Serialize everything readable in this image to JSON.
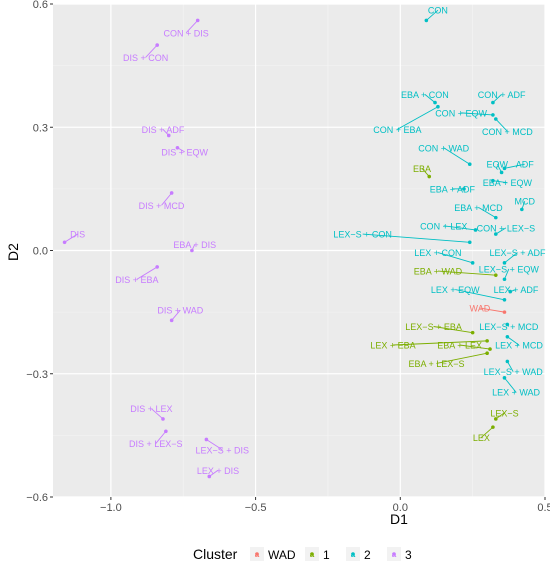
{
  "chart_data": {
    "type": "scatter",
    "xlabel": "D1",
    "ylabel": "D2",
    "xlim": [
      -1.2,
      0.5
    ],
    "ylim": [
      -0.6,
      0.6
    ],
    "x_ticks": [
      -1.0,
      -0.5,
      0.0,
      0.5
    ],
    "x_tick_labels": [
      "−1.0",
      "−0.5",
      "0.0",
      "0.5"
    ],
    "y_ticks": [
      -0.6,
      -0.3,
      0.0,
      0.3,
      0.6
    ],
    "y_tick_labels": [
      "−0.6",
      "−0.3",
      "0.0",
      "0.3",
      "0.6"
    ],
    "grid": true,
    "legend": {
      "title": "Cluster",
      "position": "bottom",
      "entries": [
        {
          "label": "WAD",
          "color": "#F8766D"
        },
        {
          "label": "1",
          "color": "#7CAE00"
        },
        {
          "label": "2",
          "color": "#00BFC4"
        },
        {
          "label": "3",
          "color": "#C77CFF"
        }
      ]
    },
    "cluster_colors": {
      "WAD": "#F8766D",
      "1": "#7CAE00",
      "2": "#00BFC4",
      "3": "#C77CFF"
    },
    "points": [
      {
        "label": "CON",
        "x": 0.09,
        "y": 0.56,
        "cluster": "2",
        "lx": 0.13,
        "ly": 0.585
      },
      {
        "label": "CON + ADF",
        "x": 0.32,
        "y": 0.36,
        "cluster": "2",
        "lx": 0.35,
        "ly": 0.38
      },
      {
        "label": "EBA + CON",
        "x": 0.12,
        "y": 0.36,
        "cluster": "2",
        "lx": 0.085,
        "ly": 0.38
      },
      {
        "label": "CON + EQW",
        "x": 0.32,
        "y": 0.33,
        "cluster": "2",
        "lx": 0.21,
        "ly": 0.335
      },
      {
        "label": "CON + EBA",
        "x": 0.13,
        "y": 0.35,
        "cluster": "2",
        "lx": -0.01,
        "ly": 0.295
      },
      {
        "label": "CON + MCD",
        "x": 0.33,
        "y": 0.32,
        "cluster": "2",
        "lx": 0.37,
        "ly": 0.29
      },
      {
        "label": "CON + WAD",
        "x": 0.24,
        "y": 0.21,
        "cluster": "2",
        "lx": 0.15,
        "ly": 0.25
      },
      {
        "label": "EQW",
        "x": 0.35,
        "y": 0.19,
        "cluster": "2",
        "lx": 0.335,
        "ly": 0.21
      },
      {
        "label": "ADF",
        "x": 0.36,
        "y": 0.2,
        "cluster": "2",
        "lx": 0.43,
        "ly": 0.21
      },
      {
        "label": "EBA + ADF",
        "x": 0.22,
        "y": 0.15,
        "cluster": "2",
        "lx": 0.18,
        "ly": 0.15
      },
      {
        "label": "EBA + EQW",
        "x": 0.32,
        "y": 0.17,
        "cluster": "2",
        "lx": 0.37,
        "ly": 0.165
      },
      {
        "label": "MCD",
        "x": 0.42,
        "y": 0.1,
        "cluster": "2",
        "lx": 0.43,
        "ly": 0.12
      },
      {
        "label": "EBA + MCD",
        "x": 0.33,
        "y": 0.08,
        "cluster": "2",
        "lx": 0.27,
        "ly": 0.105
      },
      {
        "label": "CON + LEX",
        "x": 0.26,
        "y": 0.05,
        "cluster": "2",
        "lx": 0.15,
        "ly": 0.06
      },
      {
        "label": "CON + LEX−S",
        "x": 0.33,
        "y": 0.04,
        "cluster": "2",
        "lx": 0.365,
        "ly": 0.055
      },
      {
        "label": "LEX−S + CON",
        "x": 0.24,
        "y": 0.02,
        "cluster": "2",
        "lx": -0.13,
        "ly": 0.04
      },
      {
        "label": "LEX + CON",
        "x": 0.25,
        "y": -0.03,
        "cluster": "2",
        "lx": 0.13,
        "ly": -0.005
      },
      {
        "label": "LEX−S + ADF",
        "x": 0.36,
        "y": -0.03,
        "cluster": "2",
        "lx": 0.405,
        "ly": -0.005
      },
      {
        "label": "LEX−S + EQW",
        "x": 0.36,
        "y": -0.07,
        "cluster": "2",
        "lx": 0.375,
        "ly": -0.045
      },
      {
        "label": "LEX + EQW",
        "x": 0.36,
        "y": -0.12,
        "cluster": "2",
        "lx": 0.19,
        "ly": -0.095
      },
      {
        "label": "LEX + ADF",
        "x": 0.38,
        "y": -0.1,
        "cluster": "2",
        "lx": 0.4,
        "ly": -0.095
      },
      {
        "label": "LEX−S + MCD",
        "x": 0.37,
        "y": -0.18,
        "cluster": "2",
        "lx": 0.375,
        "ly": -0.185
      },
      {
        "label": "LEX + MCD",
        "x": 0.37,
        "y": -0.21,
        "cluster": "2",
        "lx": 0.41,
        "ly": -0.23
      },
      {
        "label": "LEX−S + WAD",
        "x": 0.37,
        "y": -0.27,
        "cluster": "2",
        "lx": 0.39,
        "ly": -0.295
      },
      {
        "label": "LEX + WAD",
        "x": 0.36,
        "y": -0.31,
        "cluster": "2",
        "lx": 0.4,
        "ly": -0.345
      },
      {
        "label": "EBA",
        "x": 0.1,
        "y": 0.18,
        "cluster": "1",
        "lx": 0.075,
        "ly": 0.2
      },
      {
        "label": "EBA + WAD",
        "x": 0.33,
        "y": -0.06,
        "cluster": "1",
        "lx": 0.13,
        "ly": -0.05
      },
      {
        "label": "LEX−S + EBA",
        "x": 0.25,
        "y": -0.2,
        "cluster": "1",
        "lx": 0.115,
        "ly": -0.185
      },
      {
        "label": "LEX + EBA",
        "x": 0.3,
        "y": -0.22,
        "cluster": "1",
        "lx": -0.025,
        "ly": -0.23
      },
      {
        "label": "EBA + LEX",
        "x": 0.31,
        "y": -0.24,
        "cluster": "1",
        "lx": 0.205,
        "ly": -0.23
      },
      {
        "label": "EBA + LEX−S",
        "x": 0.3,
        "y": -0.25,
        "cluster": "1",
        "lx": 0.125,
        "ly": -0.275
      },
      {
        "label": "LEX−S",
        "x": 0.33,
        "y": -0.41,
        "cluster": "1",
        "lx": 0.36,
        "ly": -0.395
      },
      {
        "label": "LEX",
        "x": 0.32,
        "y": -0.43,
        "cluster": "1",
        "lx": 0.28,
        "ly": -0.455
      },
      {
        "label": "WAD",
        "x": 0.36,
        "y": -0.15,
        "cluster": "WAD",
        "lx": 0.275,
        "ly": -0.14
      },
      {
        "label": "CON + DIS",
        "x": -0.7,
        "y": 0.56,
        "cluster": "3",
        "lx": -0.74,
        "ly": 0.53
      },
      {
        "label": "DIS + CON",
        "x": -0.84,
        "y": 0.5,
        "cluster": "3",
        "lx": -0.88,
        "ly": 0.47
      },
      {
        "label": "DIS + ADF",
        "x": -0.8,
        "y": 0.28,
        "cluster": "3",
        "lx": -0.82,
        "ly": 0.295
      },
      {
        "label": "DIS + EQW",
        "x": -0.77,
        "y": 0.25,
        "cluster": "3",
        "lx": -0.745,
        "ly": 0.24
      },
      {
        "label": "DIS + MCD",
        "x": -0.79,
        "y": 0.14,
        "cluster": "3",
        "lx": -0.825,
        "ly": 0.11
      },
      {
        "label": "DIS",
        "x": -1.16,
        "y": 0.02,
        "cluster": "3",
        "lx": -1.115,
        "ly": 0.04
      },
      {
        "label": "EBA + DIS",
        "x": -0.72,
        "y": 0.0,
        "cluster": "3",
        "lx": -0.71,
        "ly": 0.015
      },
      {
        "label": "DIS + EBA",
        "x": -0.84,
        "y": -0.04,
        "cluster": "3",
        "lx": -0.91,
        "ly": -0.07
      },
      {
        "label": "DIS + WAD",
        "x": -0.79,
        "y": -0.17,
        "cluster": "3",
        "lx": -0.76,
        "ly": -0.145
      },
      {
        "label": "DIS + LEX",
        "x": -0.82,
        "y": -0.41,
        "cluster": "3",
        "lx": -0.86,
        "ly": -0.385
      },
      {
        "label": "DIS + LEX−S",
        "x": -0.81,
        "y": -0.44,
        "cluster": "3",
        "lx": -0.845,
        "ly": -0.47
      },
      {
        "label": "LEX−S + DIS",
        "x": -0.67,
        "y": -0.46,
        "cluster": "3",
        "lx": -0.615,
        "ly": -0.485
      },
      {
        "label": "LEX + DIS",
        "x": -0.66,
        "y": -0.55,
        "cluster": "3",
        "lx": -0.63,
        "ly": -0.535
      }
    ]
  }
}
